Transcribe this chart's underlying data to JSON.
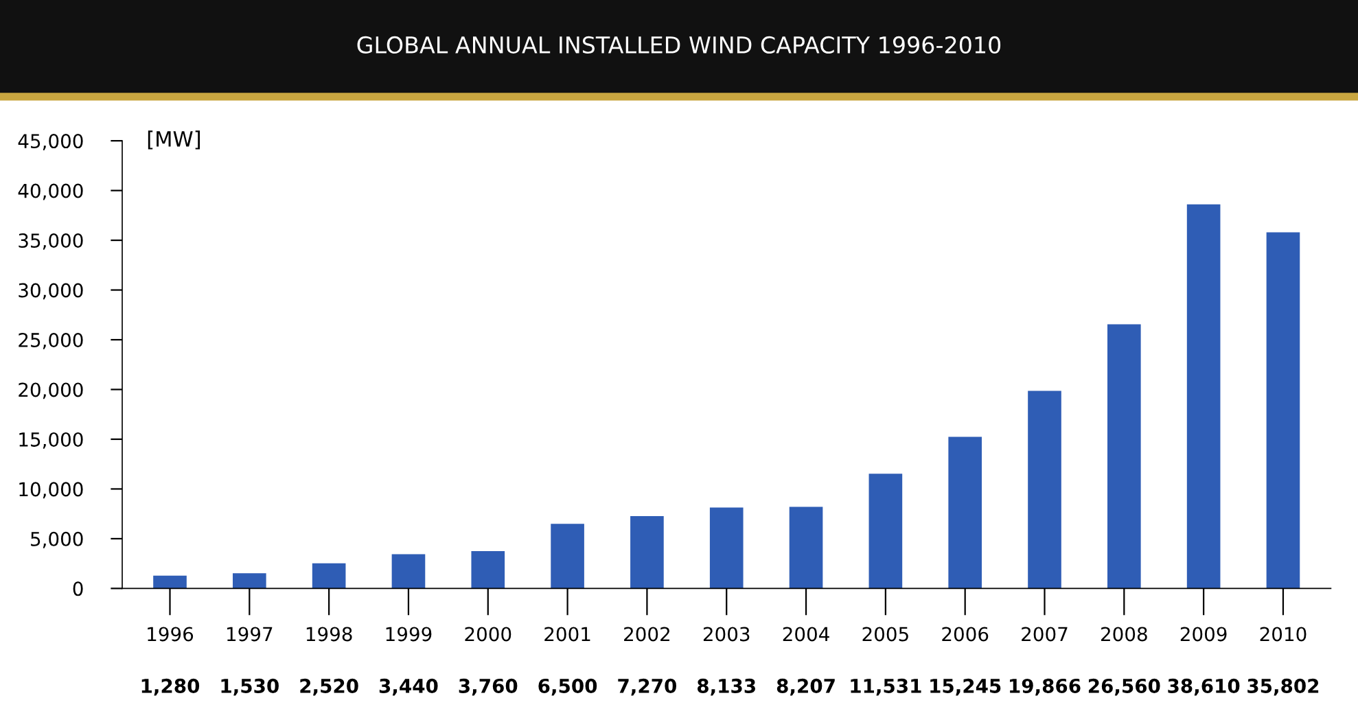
{
  "chart_data": {
    "type": "bar",
    "title": "GLOBAL ANNUAL INSTALLED WIND CAPACITY 1996-2010",
    "ylabel": "[MW]",
    "categories": [
      "1996",
      "1997",
      "1998",
      "1999",
      "2000",
      "2001",
      "2002",
      "2003",
      "2004",
      "2005",
      "2006",
      "2007",
      "2008",
      "2009",
      "2010"
    ],
    "values": [
      1280,
      1530,
      2520,
      3440,
      3760,
      6500,
      7270,
      8133,
      8207,
      11531,
      15245,
      19866,
      26560,
      38610,
      35802
    ],
    "value_labels": [
      "1,280",
      "1,530",
      "2,520",
      "3,440",
      "3,760",
      "6,500",
      "7,270",
      "8,133",
      "8,207",
      "11,531",
      "15,245",
      "19,866",
      "26,560",
      "38,610",
      "35,802"
    ],
    "color": "#2f5db5",
    "ylim": [
      0,
      45000
    ],
    "yticks": [
      {
        "value": 0,
        "label": "0"
      },
      {
        "value": 5000,
        "label": "5,000"
      },
      {
        "value": 10000,
        "label": "10,000"
      },
      {
        "value": 15000,
        "label": "15,000"
      },
      {
        "value": 20000,
        "label": "20,000"
      },
      {
        "value": 25000,
        "label": "25,000"
      },
      {
        "value": 30000,
        "label": "30,000"
      },
      {
        "value": 35000,
        "label": "35,000"
      },
      {
        "value": 40000,
        "label": "40,000"
      },
      {
        "value": 45000,
        "label": "45,000"
      }
    ],
    "grid": false
  }
}
